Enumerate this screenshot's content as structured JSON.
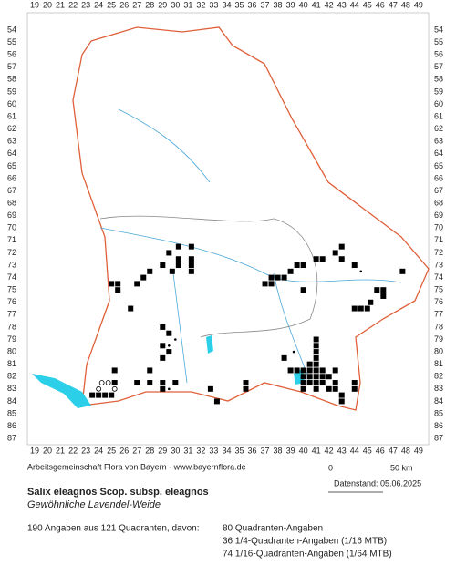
{
  "grid": {
    "columns": [
      19,
      20,
      21,
      22,
      23,
      24,
      25,
      26,
      27,
      28,
      29,
      30,
      31,
      32,
      33,
      34,
      35,
      36,
      37,
      38,
      39,
      40,
      41,
      42,
      43,
      44,
      45,
      46,
      47,
      48,
      49
    ],
    "rows": [
      54,
      55,
      56,
      57,
      58,
      59,
      60,
      61,
      62,
      63,
      64,
      65,
      66,
      67,
      68,
      69,
      70,
      71,
      72,
      73,
      74,
      75,
      76,
      77,
      78,
      79,
      80,
      81,
      82,
      83,
      84,
      85,
      86,
      87
    ]
  },
  "records": {
    "squares": [
      [
        30.25,
        71.5
      ],
      [
        31.25,
        71.5
      ],
      [
        29.5,
        72
      ],
      [
        30.25,
        72.5
      ],
      [
        31.25,
        72.5
      ],
      [
        29,
        73
      ],
      [
        30.25,
        73
      ],
      [
        31.25,
        73
      ],
      [
        28,
        73.5
      ],
      [
        29.75,
        73.5
      ],
      [
        31.25,
        73.5
      ],
      [
        27.5,
        74
      ],
      [
        27,
        74.5
      ],
      [
        25,
        74.5
      ],
      [
        25.5,
        74.5
      ],
      [
        25.5,
        75
      ],
      [
        26.5,
        76.5
      ],
      [
        29,
        78
      ],
      [
        29.5,
        78.5
      ],
      [
        29,
        79.5
      ],
      [
        43,
        71.5
      ],
      [
        42.5,
        72
      ],
      [
        41.5,
        72.5
      ],
      [
        41,
        72.5
      ],
      [
        40,
        73
      ],
      [
        39.5,
        73
      ],
      [
        39,
        73.5
      ],
      [
        38.5,
        74
      ],
      [
        38,
        74
      ],
      [
        37.5,
        74
      ],
      [
        37,
        74.5
      ],
      [
        37.5,
        74.5
      ],
      [
        40,
        75
      ],
      [
        43,
        72.5
      ],
      [
        44,
        73
      ],
      [
        47.75,
        73.5
      ],
      [
        45.25,
        76
      ],
      [
        45,
        76.5
      ],
      [
        44.5,
        76.5
      ],
      [
        44,
        76.5
      ],
      [
        45.75,
        75
      ],
      [
        46.25,
        75
      ],
      [
        46.25,
        75.5
      ],
      [
        41,
        79
      ],
      [
        41,
        79.5
      ],
      [
        41,
        80
      ],
      [
        38.5,
        80.5
      ],
      [
        39,
        81.5
      ],
      [
        39.5,
        81.5
      ],
      [
        40,
        81.5
      ],
      [
        40.5,
        81.5
      ],
      [
        41,
        81.5
      ],
      [
        41.5,
        81.5
      ],
      [
        41,
        80.5
      ],
      [
        40.5,
        81
      ],
      [
        41,
        81
      ],
      [
        40,
        82
      ],
      [
        40.5,
        82
      ],
      [
        41,
        82
      ],
      [
        41.5,
        82
      ],
      [
        42,
        82
      ],
      [
        42.5,
        81.5
      ],
      [
        40,
        82.5
      ],
      [
        40.5,
        82.5
      ],
      [
        41,
        82.5
      ],
      [
        41.5,
        82.5
      ],
      [
        42.5,
        82.5
      ],
      [
        40,
        83
      ],
      [
        41,
        83
      ],
      [
        42,
        83
      ],
      [
        42.5,
        83
      ],
      [
        43,
        83.5
      ],
      [
        43,
        84
      ],
      [
        44,
        83
      ],
      [
        44,
        82.5
      ],
      [
        35.5,
        82.5
      ],
      [
        35.5,
        83
      ],
      [
        33.25,
        84
      ],
      [
        32.75,
        83
      ],
      [
        25.25,
        81.5
      ],
      [
        25.25,
        82.5
      ],
      [
        24,
        83.5
      ],
      [
        24.5,
        83.5
      ],
      [
        23.5,
        83.5
      ],
      [
        25,
        83.5
      ],
      [
        28,
        81.5
      ],
      [
        29,
        82.5
      ],
      [
        29,
        83
      ],
      [
        28,
        82.5
      ],
      [
        27,
        82.5
      ],
      [
        30,
        82.5
      ],
      [
        29,
        80.5
      ],
      [
        29.5,
        80
      ]
    ],
    "open_circles": [
      [
        24.25,
        82.5
      ],
      [
        24.75,
        82.5
      ],
      [
        25.25,
        83
      ],
      [
        24,
        83
      ]
    ],
    "dots": [
      [
        29.5,
        79.5
      ],
      [
        30,
        79
      ],
      [
        39.25,
        80
      ],
      [
        44.5,
        73.5
      ],
      [
        29.5,
        83
      ]
    ]
  },
  "header": {
    "source": "Arbeitsgemeinschaft Flora von Bayern - www.bayernflora.de",
    "scale_start": "0",
    "scale_end": "50 km",
    "date": "Datenstand: 05.06.2025",
    "title": "Salix eleagnos Scop. subsp. eleagnos",
    "subtitle": "Gewöhnliche Lavendel-Weide"
  },
  "stats": {
    "total": "190 Angaben aus 121 Quadranten, davon:",
    "lines": [
      "80 Quadranten-Angaben",
      "36 1/4-Quadranten-Angaben (1/16 MTB)",
      "74 1/16-Quadranten-Angaben (1/64 MTB)"
    ]
  }
}
